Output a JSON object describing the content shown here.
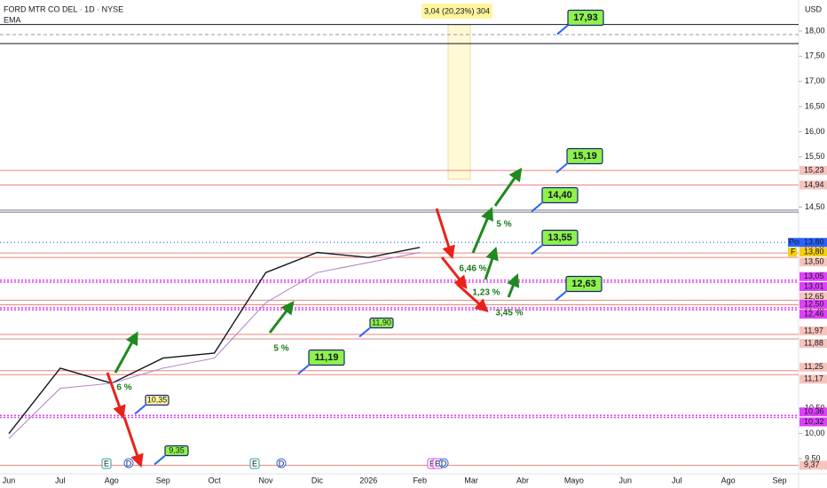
{
  "header": {
    "title": "FORD MTR CO DEL · 1D · NYSE",
    "indicator": "EMA",
    "currency": "USD",
    "measure": "3,04 (20,23%) 304"
  },
  "chart_data": {
    "type": "line",
    "categories": [
      "Jun",
      "Jul",
      "Ago",
      "Sep",
      "Oct",
      "Nov",
      "Dic",
      "2026",
      "Feb",
      "Mar",
      "Abr",
      "Mayo",
      "Jun",
      "Jul",
      "Ago",
      "Sep"
    ],
    "series": [
      {
        "name": "Close",
        "color": "#131722",
        "values": [
          10.0,
          11.3,
          11.0,
          11.5,
          11.6,
          13.2,
          13.6,
          13.5,
          13.7,
          null,
          null,
          null,
          null,
          null,
          null,
          null
        ]
      },
      {
        "name": "EMA",
        "color": "#b07cc6",
        "values": [
          9.9,
          10.9,
          11.0,
          11.3,
          11.5,
          12.6,
          13.2,
          13.4,
          13.6,
          null,
          null,
          null,
          null,
          null,
          null,
          null
        ]
      }
    ],
    "ylim": [
      9.3,
      18.4
    ],
    "yticks": [
      {
        "value": 18,
        "label": "18,00"
      },
      {
        "value": 17.5,
        "label": "17,50"
      },
      {
        "value": 17,
        "label": "17,00"
      },
      {
        "value": 16.5,
        "label": "16,50"
      },
      {
        "value": 16,
        "label": "16,00"
      },
      {
        "value": 15.5,
        "label": "15,50"
      },
      {
        "value": 14.5,
        "label": "14,50"
      },
      {
        "value": 10.5,
        "label": "10,50"
      },
      {
        "value": 10,
        "label": "10,00"
      },
      {
        "value": 9.5,
        "label": "9,50"
      }
    ],
    "levels": [
      {
        "value": 15.23,
        "label": "15,23",
        "style": "red"
      },
      {
        "value": 14.94,
        "label": "14,94",
        "style": "red"
      },
      {
        "value": 13.59,
        "label": "13,59",
        "style": "red"
      },
      {
        "value": 13.5,
        "label": "13,50",
        "style": "red"
      },
      {
        "value": 13.05,
        "label": "13,05",
        "style": "magenta"
      },
      {
        "value": 13.01,
        "label": "13,01",
        "style": "magenta"
      },
      {
        "value": 12.65,
        "label": "12,65",
        "style": "red"
      },
      {
        "value": 12.56,
        "label": "12,56",
        "style": "red"
      },
      {
        "value": 12.5,
        "label": "12,50",
        "style": "magenta"
      },
      {
        "value": 12.46,
        "label": "12,46",
        "style": "magenta"
      },
      {
        "value": 11.97,
        "label": "11,97",
        "style": "red"
      },
      {
        "value": 11.88,
        "label": "11,88",
        "style": "red"
      },
      {
        "value": 11.25,
        "label": "11,25",
        "style": "red"
      },
      {
        "value": 11.17,
        "label": "11,17",
        "style": "red"
      },
      {
        "value": 10.36,
        "label": "10,36",
        "style": "magenta"
      },
      {
        "value": 10.32,
        "label": "10,32",
        "style": "magenta"
      },
      {
        "value": 9.37,
        "label": "9,37",
        "style": "red"
      }
    ],
    "plain_levels": [
      18.13,
      17.75,
      14.44,
      14.4
    ],
    "price_tags": [
      {
        "tag": "Pos",
        "value": 13.8,
        "label": "13,80",
        "color": "#2962ff"
      },
      {
        "tag": "F",
        "value": 13.8,
        "label": "13,80",
        "color": "#f5d10c"
      }
    ],
    "annotations": [
      "17,93",
      "15,19",
      "14,40",
      "13,55",
      "12,63",
      "11,19",
      "11,90",
      "10,35",
      "9,35"
    ],
    "percents": [
      "5 %",
      "6,46 %",
      "1,23 %",
      "3,45 %",
      "5 %",
      "6 %"
    ],
    "events": [
      "E",
      "D",
      "E",
      "D",
      "E",
      "E",
      "D"
    ]
  }
}
